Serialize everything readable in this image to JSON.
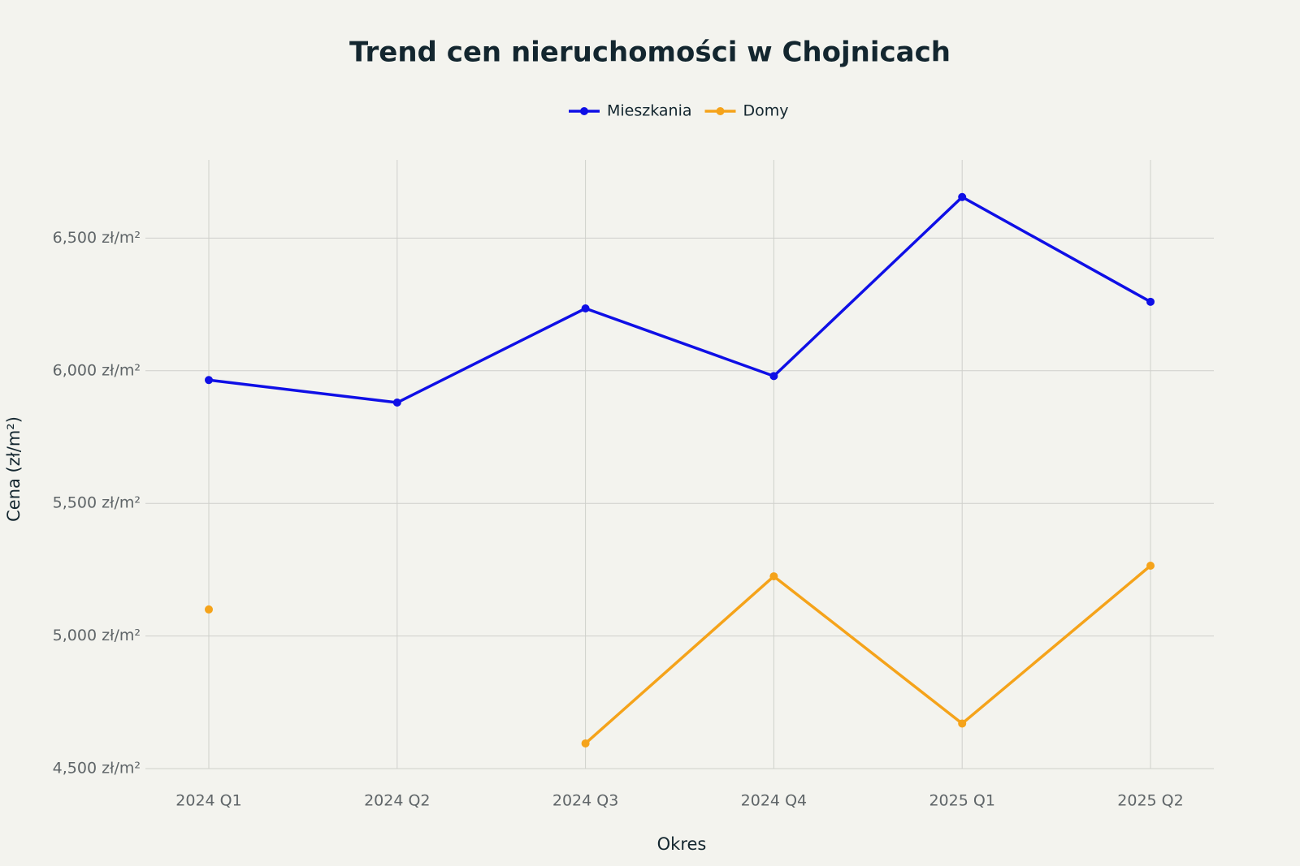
{
  "chart_data": {
    "type": "line",
    "title": "Trend cen nieruchomości w Chojnicach",
    "x_label": "Okres",
    "y_label": "Cena (zł/m²)",
    "categories": [
      "2024 Q1",
      "2024 Q2",
      "2024 Q3",
      "2024 Q4",
      "2025 Q1",
      "2025 Q2"
    ],
    "series": [
      {
        "name": "Mieszkania",
        "color": "#0f0fe6",
        "values": [
          5965,
          5880,
          6235,
          5980,
          6655,
          6260
        ]
      },
      {
        "name": "Domy",
        "color": "#f5a31a",
        "values": [
          5100,
          null,
          4595,
          5225,
          4670,
          5265
        ]
      }
    ],
    "ylim": [
      4500,
      6795
    ],
    "yticks": [
      {
        "value": 4500,
        "label": "4,500 zł/m²"
      },
      {
        "value": 5000,
        "label": "5,000 zł/m²"
      },
      {
        "value": 5500,
        "label": "5,500 zł/m²"
      },
      {
        "value": 6000,
        "label": "6,000 zł/m²"
      },
      {
        "value": 6500,
        "label": "6,500 zł/m²"
      }
    ],
    "grid": true,
    "legend": "top"
  }
}
